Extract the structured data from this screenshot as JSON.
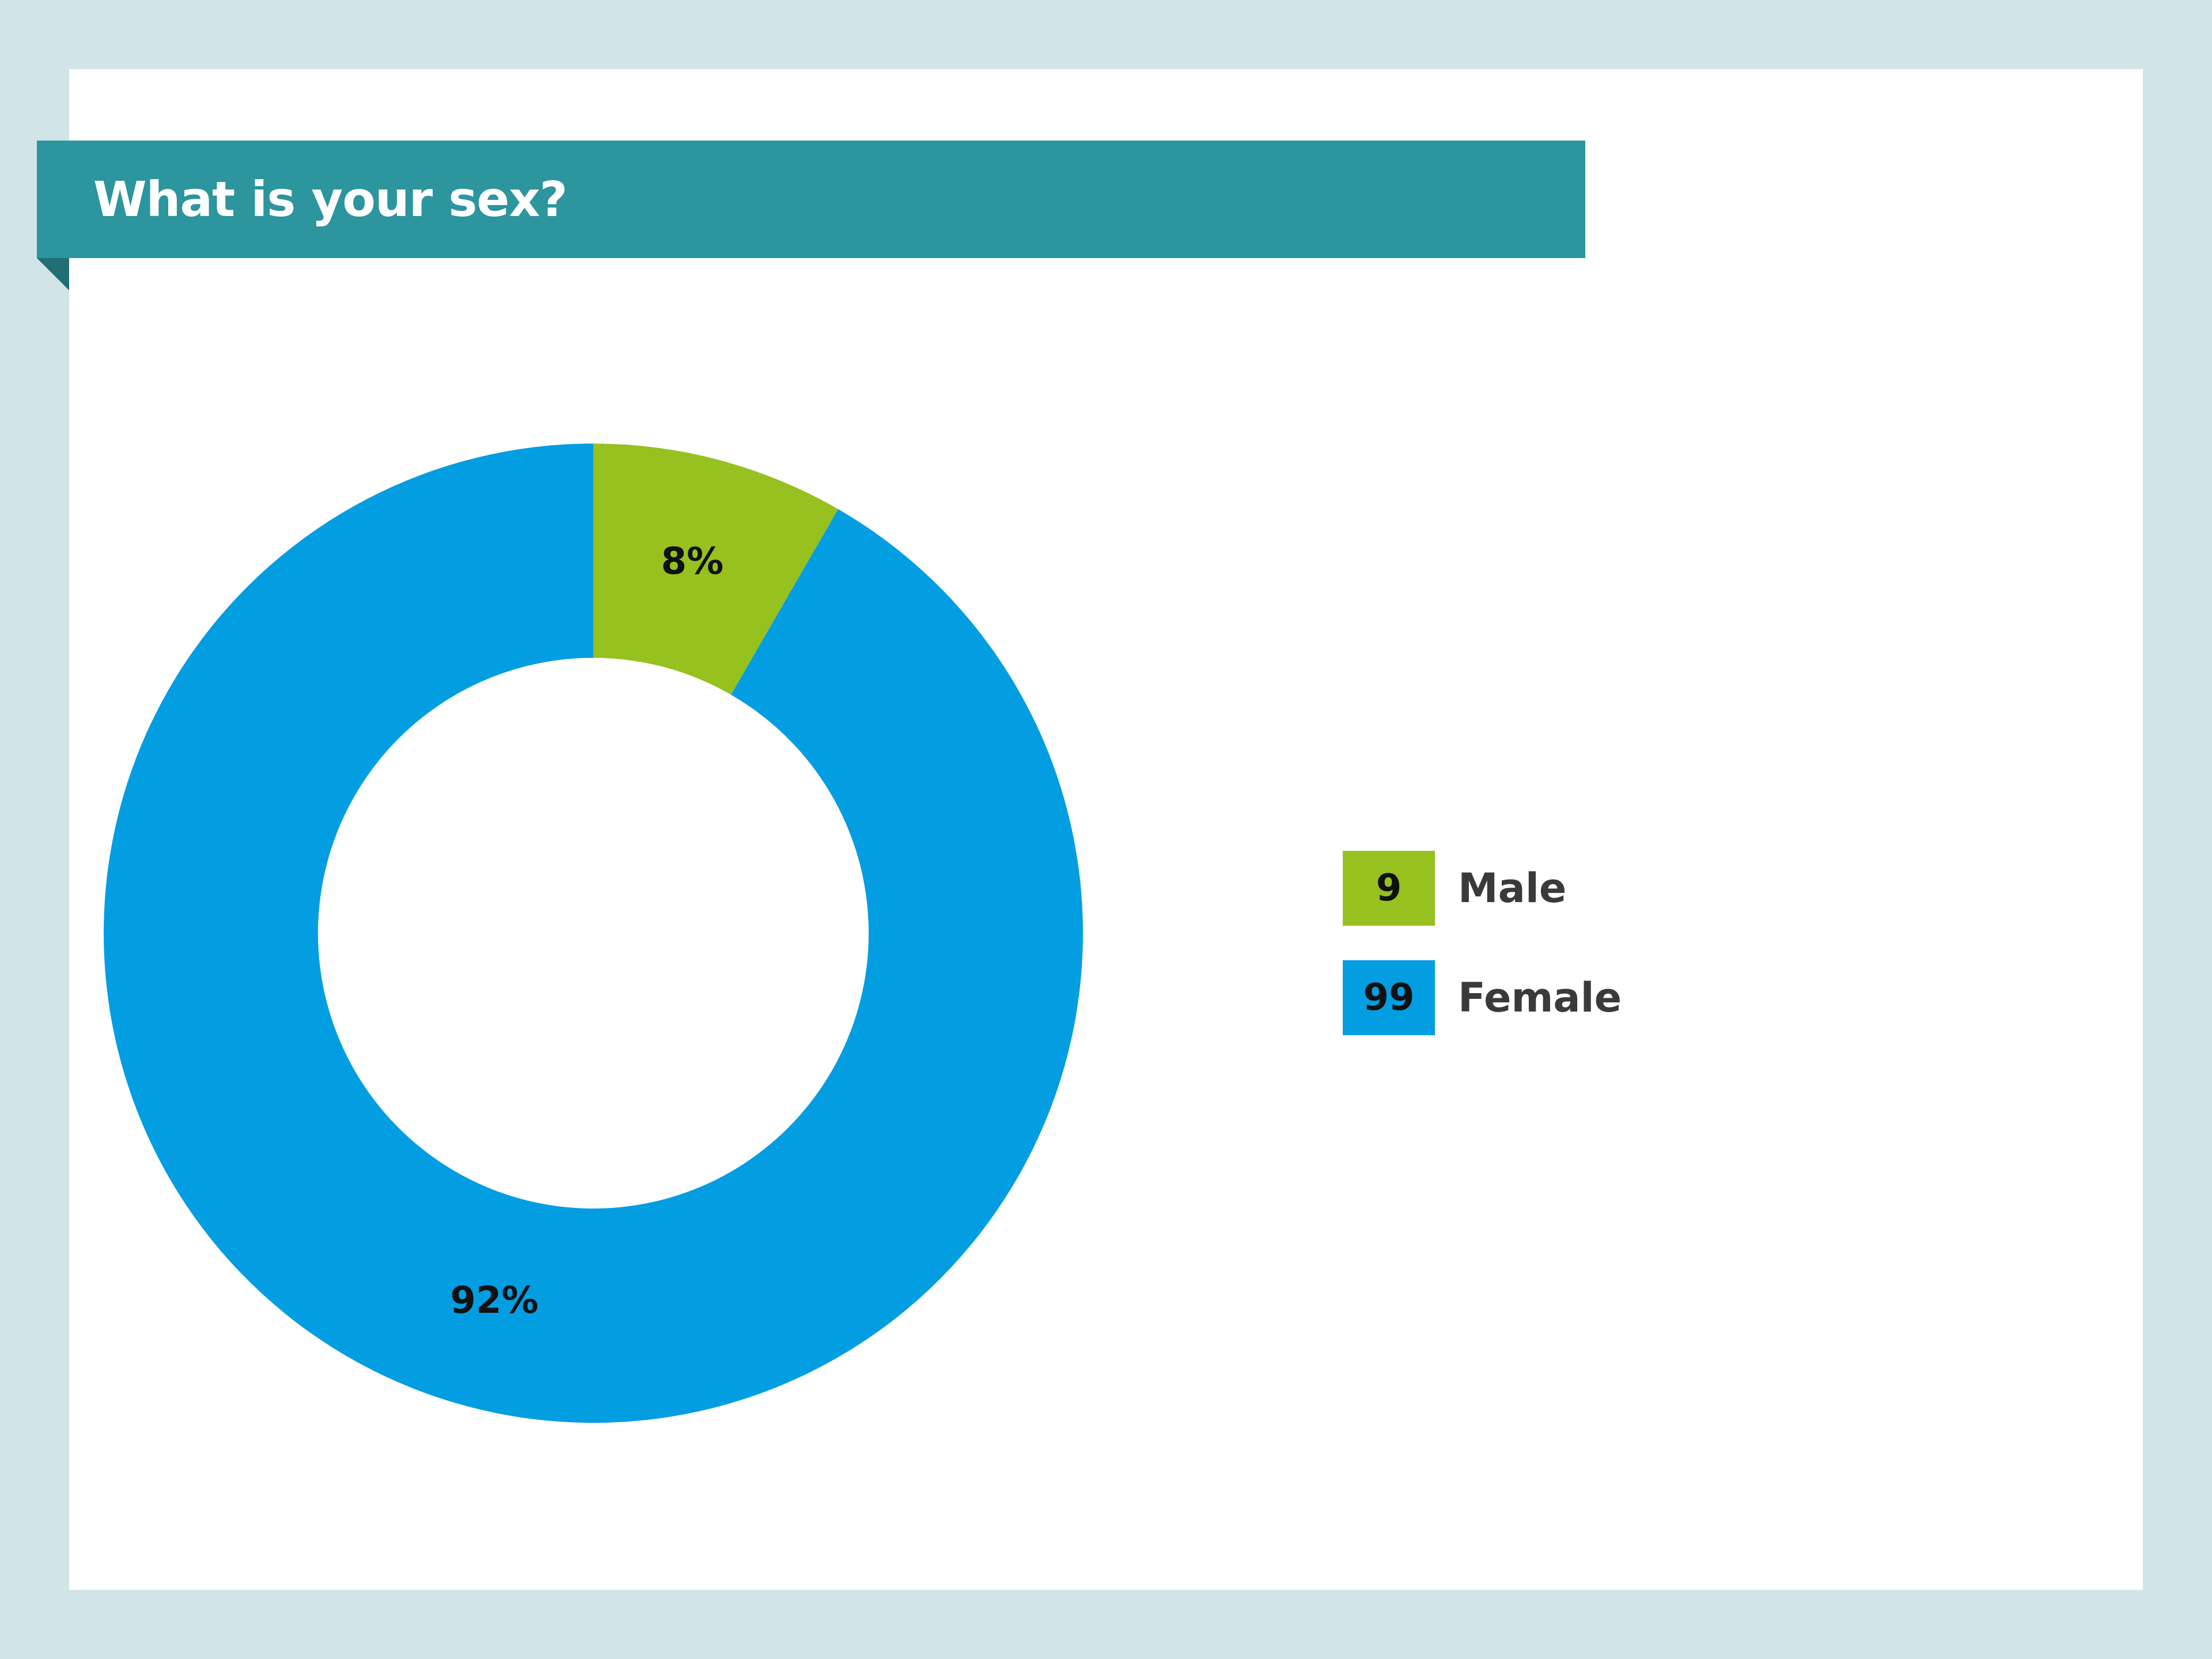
{
  "title": "What is your sex?",
  "colors": {
    "background": "#d1e4e7",
    "banner": "#2c959e",
    "male": "#96c11f",
    "female": "#039de2"
  },
  "chart_data": {
    "type": "pie",
    "donut": true,
    "title": "What is your sex?",
    "categories": [
      "Male",
      "Female"
    ],
    "counts": [
      9,
      99
    ],
    "percent_labels": [
      "8%",
      "92%"
    ],
    "colors": [
      "#96c11f",
      "#039de2"
    ],
    "legend_position": "right"
  }
}
